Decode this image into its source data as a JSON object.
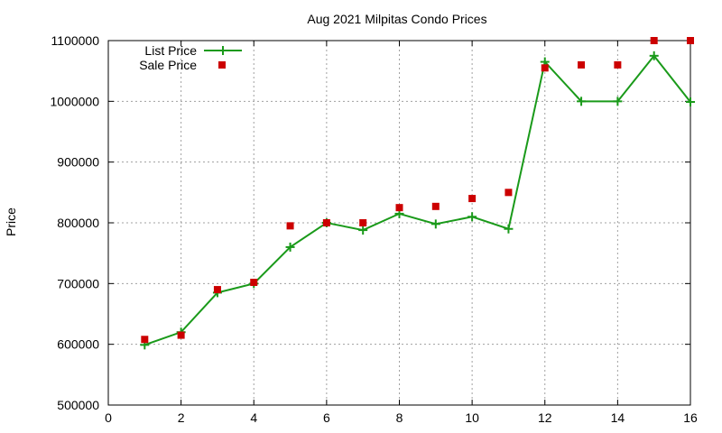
{
  "chart_data": {
    "type": "line",
    "title": "Aug 2021 Milpitas Condo Prices",
    "xlabel": "",
    "ylabel": "Price",
    "xlim": [
      0,
      16
    ],
    "ylim": [
      500000,
      1100000
    ],
    "x_ticks": [
      0,
      2,
      4,
      6,
      8,
      10,
      12,
      14,
      16
    ],
    "y_ticks": [
      500000,
      600000,
      700000,
      800000,
      900000,
      1000000,
      1100000
    ],
    "grid": true,
    "legend_position": "top-left",
    "series": [
      {
        "name": "List Price",
        "style": "lines+points",
        "marker": "plus",
        "color": "#1a9a1a",
        "x": [
          1,
          2,
          3,
          4,
          5,
          6,
          7,
          8,
          9,
          10,
          11,
          12,
          13,
          14,
          15,
          16
        ],
        "values": [
          599000,
          620000,
          685000,
          700000,
          760000,
          800000,
          788000,
          815000,
          798000,
          810000,
          790000,
          1065000,
          1000000,
          1000000,
          1075000,
          999000
        ]
      },
      {
        "name": "Sale Price",
        "style": "points",
        "marker": "square",
        "color": "#cc0000",
        "x": [
          1,
          2,
          3,
          4,
          5,
          6,
          7,
          8,
          9,
          10,
          11,
          12,
          13,
          14,
          15,
          16
        ],
        "values": [
          608000,
          615000,
          690000,
          702000,
          795000,
          800000,
          800000,
          825000,
          827000,
          840000,
          850000,
          1055000,
          1060000,
          1060000,
          1100000,
          1100000
        ]
      }
    ]
  }
}
